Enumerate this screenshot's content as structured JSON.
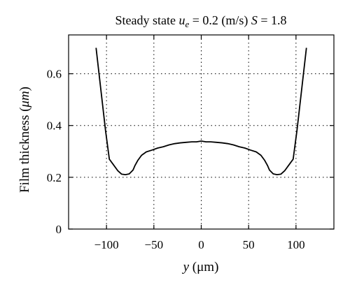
{
  "chart_data": {
    "type": "line",
    "title": {
      "prefix": "Steady state ",
      "var1": "u",
      "var1_sub": "e",
      "mid": " = 0.2 (m/s) ",
      "var2": "S",
      "suffix": " = 1.8"
    },
    "xlabel": {
      "var": "y",
      "rest": " (μm)"
    },
    "ylabel": {
      "text": "Film thickness (",
      "unit": "μm",
      "close": ")"
    },
    "xlim": [
      -140,
      140
    ],
    "ylim": [
      0,
      0.75
    ],
    "xticks": [
      -100,
      -50,
      0,
      50,
      100
    ],
    "xtick_labels": [
      "−100",
      "−50",
      "0",
      "50",
      "100"
    ],
    "yticks": [
      0,
      0.2,
      0.4,
      0.6
    ],
    "ytick_labels": [
      "0",
      "0.2",
      "0.4",
      "0.6"
    ],
    "grid": "dotted",
    "legend": "none",
    "line_color": "#000000",
    "series": [
      {
        "x": [
          -111,
          -106,
          -101,
          -97,
          -93,
          -88,
          -84,
          -80,
          -76,
          -72,
          -70,
          -67,
          -63,
          -58,
          -52,
          -46,
          -40,
          -34,
          -28,
          -22,
          -16,
          -10,
          -5,
          0,
          5,
          10,
          16,
          22,
          28,
          34,
          40,
          46,
          52,
          58,
          63,
          67,
          70,
          72,
          76,
          80,
          84,
          88,
          93,
          97,
          101,
          106,
          111
        ],
        "y": [
          0.7,
          0.54,
          0.38,
          0.27,
          0.25,
          0.225,
          0.212,
          0.21,
          0.213,
          0.228,
          0.245,
          0.265,
          0.285,
          0.298,
          0.305,
          0.313,
          0.318,
          0.325,
          0.33,
          0.333,
          0.335,
          0.337,
          0.337,
          0.34,
          0.337,
          0.337,
          0.335,
          0.333,
          0.33,
          0.325,
          0.318,
          0.313,
          0.305,
          0.298,
          0.285,
          0.265,
          0.245,
          0.228,
          0.213,
          0.21,
          0.212,
          0.225,
          0.25,
          0.27,
          0.38,
          0.54,
          0.7
        ]
      }
    ]
  }
}
